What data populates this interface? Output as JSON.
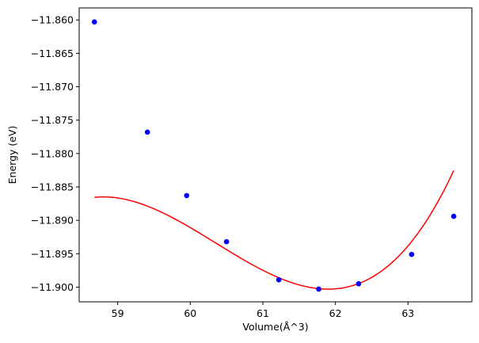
{
  "chart_data": {
    "type": "scatter",
    "title": "",
    "xlabel": "Volume(Å^3)",
    "ylabel": "Energy (eV)",
    "xlim": [
      58.47,
      63.88
    ],
    "ylim": [
      -11.9022,
      -11.8582
    ],
    "x_ticks": [
      59,
      60,
      61,
      62,
      63
    ],
    "y_ticks": [
      -11.86,
      -11.865,
      -11.87,
      -11.875,
      -11.88,
      -11.885,
      -11.89,
      -11.895,
      -11.9
    ],
    "x_tick_labels": [
      "59",
      "60",
      "61",
      "62",
      "63"
    ],
    "y_tick_labels": [
      "−11.860",
      "−11.865",
      "−11.870",
      "−11.875",
      "−11.880",
      "−11.885",
      "−11.890",
      "−11.895",
      "−11.900"
    ],
    "grid": false,
    "legend": "none",
    "series": [
      {
        "kind": "points",
        "color": "#0000ff",
        "x": [
          58.68,
          59.41,
          59.95,
          60.5,
          61.22,
          61.77,
          62.32,
          63.05,
          63.63
        ],
        "y": [
          -11.8603,
          -11.8768,
          -11.8863,
          -11.8932,
          -11.8989,
          -11.9003,
          -11.8995,
          -11.8951,
          -11.8894
        ]
      },
      {
        "kind": "line",
        "color": "#ff0000",
        "fit": "quadratic",
        "coefficients": [
          -11.9003,
          0.00432,
          0.00093
        ],
        "vertex_x": 61.9,
        "x_range": [
          58.68,
          63.63
        ]
      }
    ]
  }
}
